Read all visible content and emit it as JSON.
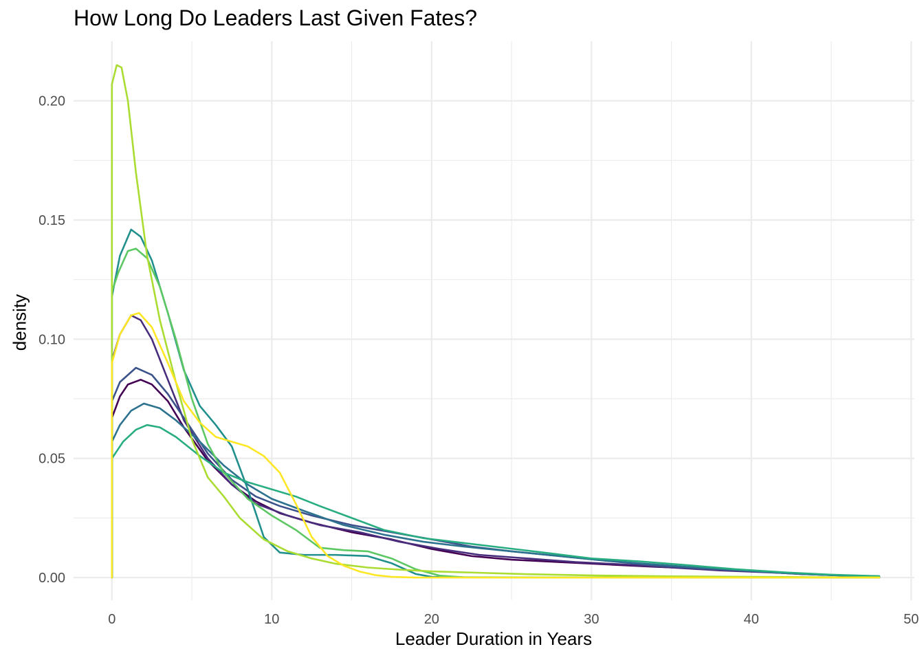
{
  "chart_data": {
    "type": "line",
    "title": "How Long Do Leaders Last Given Fates?",
    "xlabel": "Leader Duration in Years",
    "ylabel": "density",
    "xlim": [
      -2.4,
      50.2
    ],
    "ylim": [
      -0.0095,
      0.225
    ],
    "x_ticks": [
      0,
      10,
      20,
      30,
      40,
      50
    ],
    "x_tick_labels": [
      "0",
      "10",
      "20",
      "30",
      "40",
      "50"
    ],
    "y_ticks": [
      0.0,
      0.05,
      0.1,
      0.15,
      0.2
    ],
    "y_tick_labels": [
      "0.00",
      "0.05",
      "0.10",
      "0.15",
      "0.20"
    ],
    "grid": true,
    "legend": "none",
    "series": [
      {
        "color": "#440154",
        "values": [
          [
            0,
            0
          ],
          [
            0,
            0.067
          ],
          [
            0.5,
            0.076
          ],
          [
            1,
            0.081
          ],
          [
            1.8,
            0.083
          ],
          [
            2.5,
            0.081
          ],
          [
            3.5,
            0.074
          ],
          [
            4.5,
            0.063
          ],
          [
            6,
            0.049
          ],
          [
            7.5,
            0.039
          ],
          [
            9,
            0.032
          ],
          [
            10.5,
            0.027
          ],
          [
            12.5,
            0.023
          ],
          [
            15,
            0.019
          ],
          [
            17.5,
            0.016
          ],
          [
            20,
            0.012
          ],
          [
            22.5,
            0.009
          ],
          [
            25,
            0.0075
          ],
          [
            28,
            0.0065
          ],
          [
            31,
            0.0055
          ],
          [
            34,
            0.0045
          ],
          [
            37,
            0.0037
          ],
          [
            40,
            0.0027
          ],
          [
            43,
            0.0015
          ],
          [
            46,
            0.0008
          ],
          [
            48,
            0.0005
          ],
          [
            48,
            0
          ]
        ]
      },
      {
        "color": "#472d7b",
        "values": [
          [
            0,
            0
          ],
          [
            0,
            0.091
          ],
          [
            0.5,
            0.102
          ],
          [
            1.2,
            0.11
          ],
          [
            1.8,
            0.108
          ],
          [
            2.5,
            0.1
          ],
          [
            3.5,
            0.083
          ],
          [
            4.5,
            0.066
          ],
          [
            6,
            0.05
          ],
          [
            7.5,
            0.039
          ],
          [
            9,
            0.031
          ],
          [
            11,
            0.026
          ],
          [
            13,
            0.022
          ],
          [
            15.5,
            0.019
          ],
          [
            18,
            0.015
          ],
          [
            20.5,
            0.012
          ],
          [
            23,
            0.0095
          ],
          [
            26,
            0.008
          ],
          [
            29,
            0.0065
          ],
          [
            32,
            0.0055
          ],
          [
            35,
            0.0042
          ],
          [
            38,
            0.003
          ],
          [
            41,
            0.0022
          ],
          [
            44,
            0.0013
          ],
          [
            48,
            0.0005
          ],
          [
            48,
            0
          ]
        ]
      },
      {
        "color": "#3b528b",
        "values": [
          [
            0,
            0
          ],
          [
            0,
            0.074
          ],
          [
            0.5,
            0.082
          ],
          [
            1.5,
            0.088
          ],
          [
            2.5,
            0.085
          ],
          [
            3.5,
            0.077
          ],
          [
            4.5,
            0.067
          ],
          [
            6,
            0.052
          ],
          [
            7.5,
            0.041
          ],
          [
            9,
            0.034
          ],
          [
            10.5,
            0.03
          ],
          [
            12.5,
            0.026
          ],
          [
            15,
            0.022
          ],
          [
            17.5,
            0.019
          ],
          [
            20,
            0.016
          ],
          [
            22.5,
            0.013
          ],
          [
            25,
            0.011
          ],
          [
            28,
            0.009
          ],
          [
            31,
            0.007
          ],
          [
            34,
            0.005
          ],
          [
            37,
            0.0038
          ],
          [
            40,
            0.0027
          ],
          [
            43,
            0.0015
          ],
          [
            46,
            0.0008
          ],
          [
            48,
            0.0004
          ],
          [
            48,
            0
          ]
        ]
      },
      {
        "color": "#2c728e",
        "values": [
          [
            0,
            0
          ],
          [
            0,
            0.057
          ],
          [
            0.5,
            0.064
          ],
          [
            1.2,
            0.07
          ],
          [
            2,
            0.073
          ],
          [
            3,
            0.071
          ],
          [
            4,
            0.066
          ],
          [
            5.5,
            0.057
          ],
          [
            7,
            0.047
          ],
          [
            8.5,
            0.039
          ],
          [
            10,
            0.033
          ],
          [
            12,
            0.028
          ],
          [
            14.5,
            0.022
          ],
          [
            17,
            0.018
          ],
          [
            19.5,
            0.015
          ],
          [
            22,
            0.013
          ],
          [
            25,
            0.011
          ],
          [
            28,
            0.009
          ],
          [
            31,
            0.007
          ],
          [
            34,
            0.0055
          ],
          [
            37,
            0.004
          ],
          [
            40,
            0.0028
          ],
          [
            43,
            0.0016
          ],
          [
            46,
            0.0008
          ],
          [
            48,
            0.0005
          ],
          [
            48,
            0
          ]
        ]
      },
      {
        "color": "#21908c",
        "values": [
          [
            0,
            0
          ],
          [
            0,
            0.118
          ],
          [
            0.5,
            0.135
          ],
          [
            1.2,
            0.146
          ],
          [
            1.8,
            0.143
          ],
          [
            2.5,
            0.133
          ],
          [
            3.5,
            0.111
          ],
          [
            4.5,
            0.087
          ],
          [
            5.5,
            0.072
          ],
          [
            6.5,
            0.064
          ],
          [
            7.5,
            0.055
          ],
          [
            8.5,
            0.037
          ],
          [
            9.5,
            0.017
          ],
          [
            10.5,
            0.0105
          ],
          [
            12,
            0.0095
          ],
          [
            14,
            0.0095
          ],
          [
            16,
            0.009
          ],
          [
            17.5,
            0.006
          ],
          [
            19,
            0.0015
          ],
          [
            20,
            0.0003
          ],
          [
            22,
            0.0001
          ],
          [
            48,
            0
          ],
          [
            48,
            0
          ]
        ]
      },
      {
        "color": "#27ad81",
        "values": [
          [
            0,
            0
          ],
          [
            0,
            0.05
          ],
          [
            0.7,
            0.057
          ],
          [
            1.5,
            0.062
          ],
          [
            2.2,
            0.064
          ],
          [
            3,
            0.063
          ],
          [
            4,
            0.059
          ],
          [
            5.5,
            0.051
          ],
          [
            7,
            0.044
          ],
          [
            8.5,
            0.04
          ],
          [
            10,
            0.037
          ],
          [
            11.5,
            0.034
          ],
          [
            13,
            0.03
          ],
          [
            15,
            0.025
          ],
          [
            17,
            0.02
          ],
          [
            19.5,
            0.0165
          ],
          [
            22,
            0.0145
          ],
          [
            24.5,
            0.0125
          ],
          [
            27,
            0.0105
          ],
          [
            30,
            0.008
          ],
          [
            33,
            0.0068
          ],
          [
            36,
            0.0052
          ],
          [
            39,
            0.0035
          ],
          [
            42,
            0.0022
          ],
          [
            45,
            0.0012
          ],
          [
            48,
            0.0006
          ],
          [
            48,
            0
          ]
        ]
      },
      {
        "color": "#5dc863",
        "values": [
          [
            0,
            0
          ],
          [
            0,
            0.12
          ],
          [
            0.4,
            0.128
          ],
          [
            1,
            0.137
          ],
          [
            1.5,
            0.138
          ],
          [
            2.2,
            0.134
          ],
          [
            3,
            0.122
          ],
          [
            4,
            0.1
          ],
          [
            5,
            0.075
          ],
          [
            6,
            0.056
          ],
          [
            7,
            0.044
          ],
          [
            8.5,
            0.033
          ],
          [
            10,
            0.026
          ],
          [
            11.5,
            0.02
          ],
          [
            13,
            0.0125
          ],
          [
            14.5,
            0.0115
          ],
          [
            16,
            0.011
          ],
          [
            17.5,
            0.008
          ],
          [
            19,
            0.0035
          ],
          [
            20.5,
            0.0008
          ],
          [
            22,
            0.0001
          ],
          [
            48,
            0
          ],
          [
            48,
            0
          ]
        ]
      },
      {
        "color": "#aadc32",
        "values": [
          [
            0,
            0
          ],
          [
            0,
            0.207
          ],
          [
            0.3,
            0.215
          ],
          [
            0.6,
            0.214
          ],
          [
            1,
            0.2
          ],
          [
            1.5,
            0.17
          ],
          [
            2.2,
            0.135
          ],
          [
            3,
            0.108
          ],
          [
            4,
            0.082
          ],
          [
            5,
            0.058
          ],
          [
            6,
            0.042
          ],
          [
            7,
            0.034
          ],
          [
            8,
            0.025
          ],
          [
            9.5,
            0.016
          ],
          [
            11,
            0.011
          ],
          [
            12.5,
            0.008
          ],
          [
            14,
            0.0058
          ],
          [
            16,
            0.0042
          ],
          [
            18,
            0.0033
          ],
          [
            20,
            0.0026
          ],
          [
            23,
            0.002
          ],
          [
            26,
            0.0014
          ],
          [
            30,
            0.0009
          ],
          [
            35,
            0.0005
          ],
          [
            40,
            0.0003
          ],
          [
            45,
            0.0001
          ],
          [
            48,
            0.0001
          ],
          [
            48,
            0
          ]
        ]
      },
      {
        "color": "#fde725",
        "values": [
          [
            0,
            0
          ],
          [
            0,
            0.09
          ],
          [
            0.5,
            0.102
          ],
          [
            1.2,
            0.11
          ],
          [
            1.7,
            0.111
          ],
          [
            2.5,
            0.105
          ],
          [
            3.5,
            0.09
          ],
          [
            4.5,
            0.074
          ],
          [
            5.5,
            0.065
          ],
          [
            6.5,
            0.059
          ],
          [
            7.5,
            0.057
          ],
          [
            8.5,
            0.055
          ],
          [
            9.5,
            0.051
          ],
          [
            10.5,
            0.044
          ],
          [
            11.5,
            0.031
          ],
          [
            12.5,
            0.017
          ],
          [
            13.5,
            0.009
          ],
          [
            14.5,
            0.005
          ],
          [
            15.5,
            0.0025
          ],
          [
            16.5,
            0.001
          ],
          [
            17.5,
            0.0003
          ],
          [
            19,
            0
          ],
          [
            48,
            0
          ],
          [
            48,
            0
          ]
        ]
      }
    ]
  }
}
